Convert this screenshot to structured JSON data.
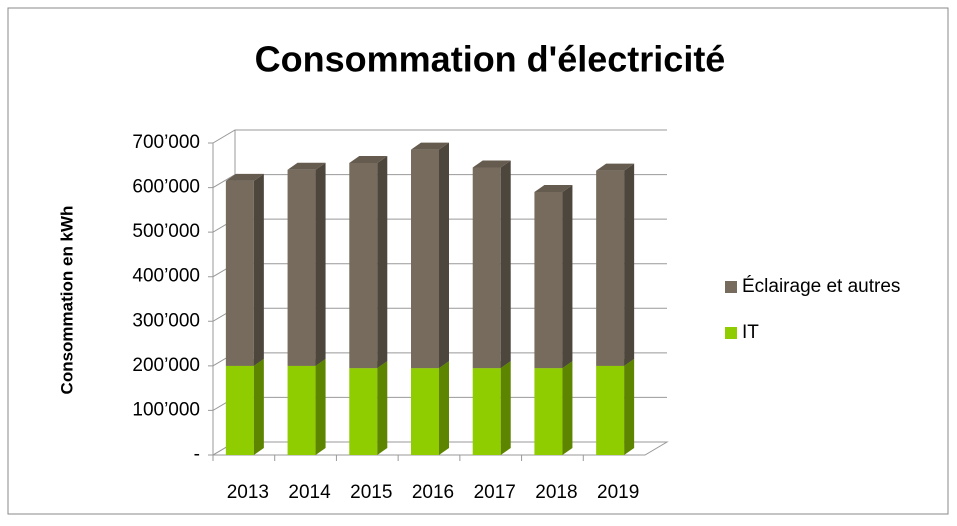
{
  "chart_data": {
    "type": "bar3d_stacked",
    "title": "Consommation d'électricité",
    "y_label": "Consommation  en kWh",
    "categories": [
      "2013",
      "2014",
      "2015",
      "2016",
      "2017",
      "2018",
      "2019"
    ],
    "series": [
      {
        "name": "IT",
        "color": "#8fcc00",
        "values": [
          200000,
          200000,
          195000,
          195000,
          195000,
          195000,
          200000
        ]
      },
      {
        "name": "Éclairage et autres",
        "color": "#776b5d",
        "values": [
          415000,
          440000,
          460000,
          490000,
          450000,
          395000,
          438000
        ]
      }
    ],
    "ylim": [
      0,
      700000
    ],
    "yticks": [
      {
        "value": 0,
        "label": "-"
      },
      {
        "value": 100000,
        "label": "100’000"
      },
      {
        "value": 200000,
        "label": "200’000"
      },
      {
        "value": 300000,
        "label": "300’000"
      },
      {
        "value": 400000,
        "label": "400’000"
      },
      {
        "value": 500000,
        "label": "500’000"
      },
      {
        "value": 600000,
        "label": "600’000"
      },
      {
        "value": 700000,
        "label": "700’000"
      }
    ],
    "grid": true
  }
}
